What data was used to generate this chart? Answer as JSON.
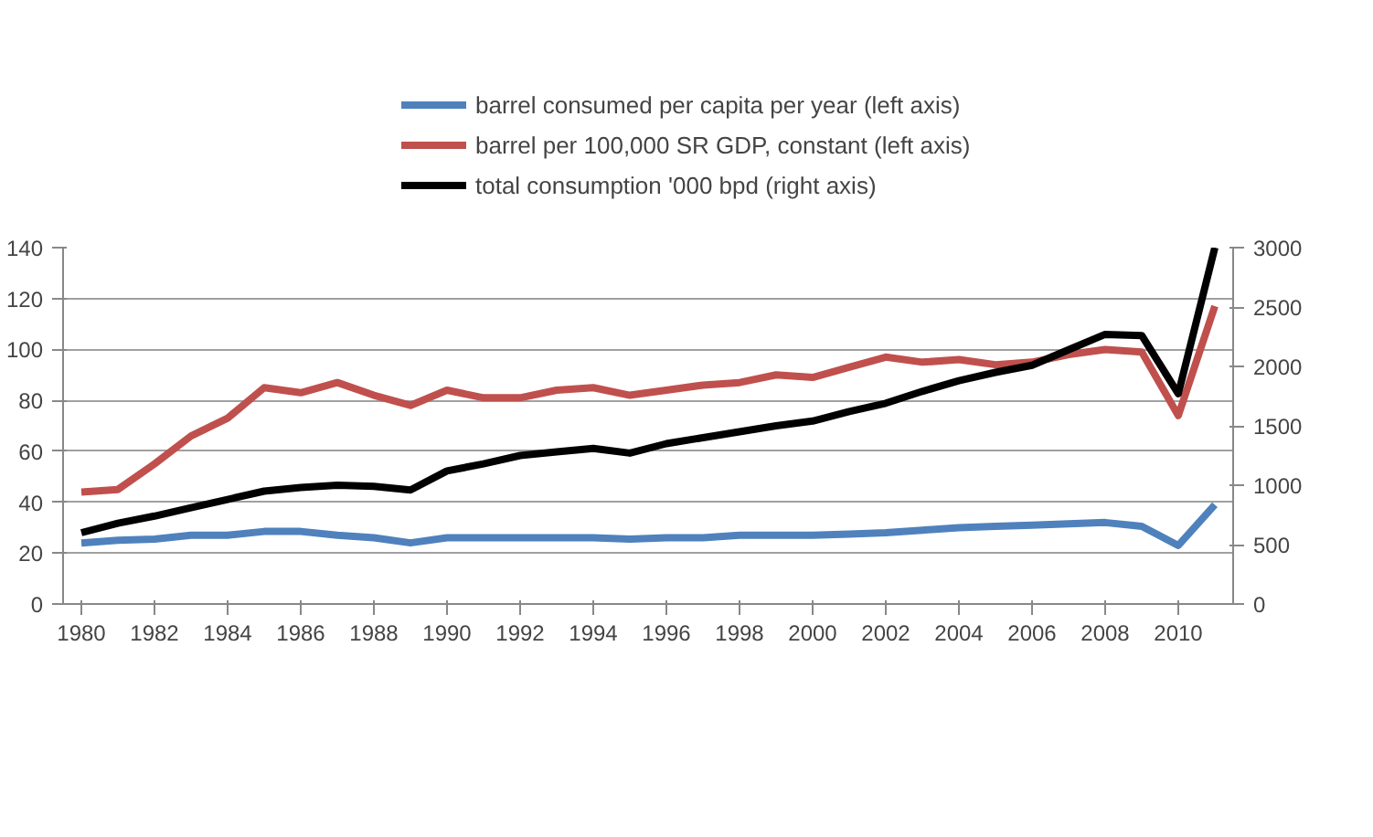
{
  "chart_data": {
    "type": "line",
    "categories": [
      "1980",
      null,
      "1982",
      null,
      "1984",
      null,
      "1986",
      null,
      "1988",
      null,
      "1990",
      null,
      "1992",
      null,
      "1994",
      null,
      "1996",
      null,
      "1998",
      null,
      "2000",
      null,
      "2002",
      null,
      "2004",
      null,
      "2006",
      null,
      "2008",
      null,
      "2010",
      null
    ],
    "series": [
      {
        "name": "barrel consumed per capita per year (left axis)",
        "color": "#4f81bd",
        "values": [
          24,
          25,
          25.5,
          27,
          27,
          28.5,
          28.5,
          27,
          26,
          24,
          26,
          26,
          26,
          26,
          26,
          25.5,
          26,
          26,
          27,
          27,
          27,
          27.5,
          28,
          29,
          30,
          30.5,
          31,
          31.5,
          32,
          30.5,
          23,
          39
        ]
      },
      {
        "name": "barrel per 100,000 SR GDP, constant (left axis)",
        "color": "#c0504d",
        "values": [
          44,
          45,
          55,
          66,
          73,
          85,
          83,
          87,
          82,
          78,
          84,
          81,
          81,
          84,
          85,
          82,
          84,
          86,
          87,
          90,
          89,
          93,
          97,
          95,
          96,
          94,
          95,
          98,
          100,
          99,
          74,
          117
        ]
      },
      {
        "name": "total consumption '000 bpd (right axis)",
        "color": "#000000",
        "axis": "y2",
        "values": [
          600,
          680,
          740,
          810,
          880,
          950,
          980,
          1000,
          990,
          960,
          1120,
          1180,
          1250,
          1280,
          1310,
          1270,
          1350,
          1400,
          1450,
          1500,
          1540,
          1620,
          1690,
          1790,
          1880,
          1950,
          2010,
          2140,
          2270,
          2260,
          1770,
          3000
        ]
      }
    ],
    "ylim": [
      0,
      140
    ],
    "yticks": [
      0,
      20,
      40,
      60,
      80,
      100,
      120,
      140
    ],
    "y2lim": [
      0,
      3000
    ],
    "y2ticks": [
      0,
      500,
      1000,
      1500,
      2000,
      2500,
      3000
    ],
    "grid": "y",
    "legend": "top",
    "line_style": "solid",
    "marker": "none"
  }
}
